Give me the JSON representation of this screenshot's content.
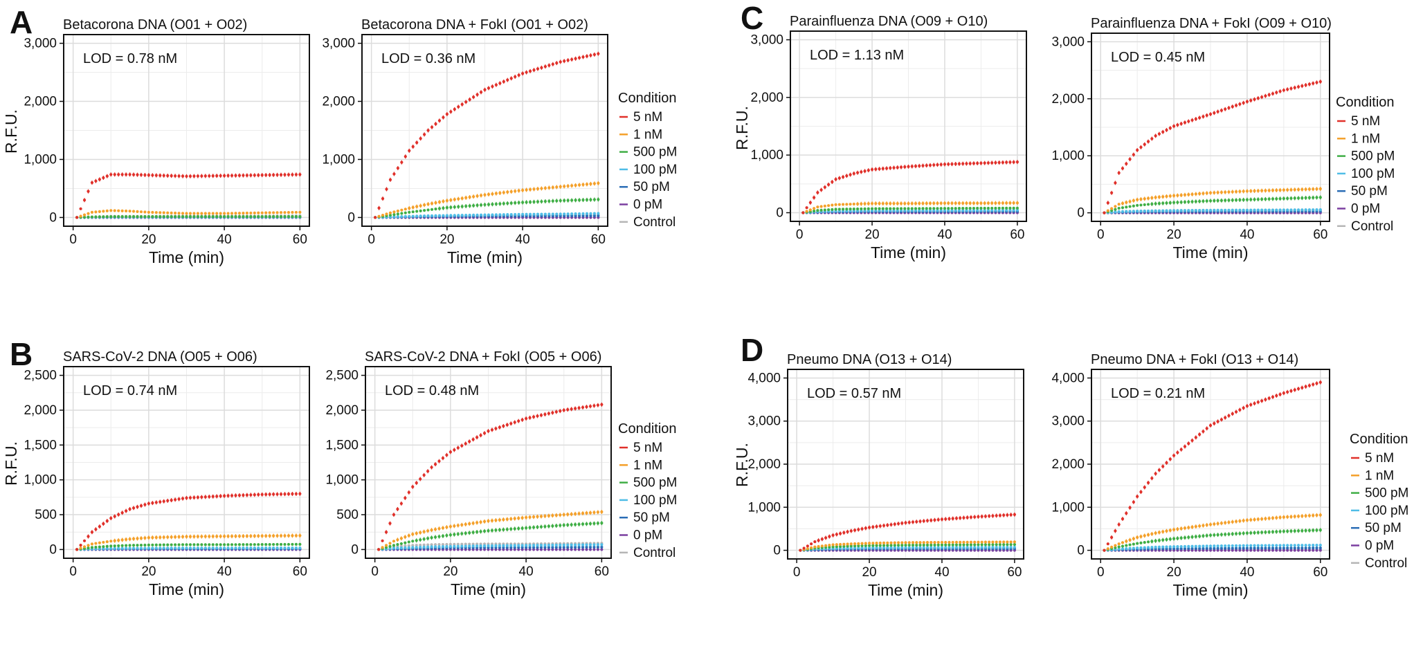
{
  "colors": {
    "5 nM": "#e0302a",
    "1 nM": "#f4a02a",
    "500 pM": "#3fae45",
    "100 pM": "#4fbde6",
    "50 pM": "#2a6db5",
    "0 pM": "#7b3fa0",
    "Control": "#b5b5b5"
  },
  "panels": [
    {
      "letter": "A"
    },
    {
      "letter": "B"
    },
    {
      "letter": "C"
    },
    {
      "letter": "D"
    }
  ],
  "chart_data": [
    {
      "type": "line",
      "title": "Betacorona DNA (O01 + O02)",
      "lod": "LOD = 0.78 nM",
      "xlabel": "Time (min)",
      "ylabel": "R.F.U.",
      "xlim": [
        0,
        60
      ],
      "ylim": [
        0,
        3000
      ],
      "xticks": [
        "0",
        "20",
        "40",
        "60"
      ],
      "yticks": [
        "0",
        "1,000",
        "2,000",
        "3,000"
      ],
      "x": [
        1,
        5,
        10,
        15,
        20,
        30,
        40,
        50,
        60
      ],
      "series": [
        {
          "name": "5 nM",
          "values": [
            0,
            600,
            740,
            740,
            730,
            710,
            720,
            730,
            740
          ]
        },
        {
          "name": "1 nM",
          "values": [
            0,
            90,
            120,
            110,
            90,
            70,
            70,
            80,
            90
          ]
        },
        {
          "name": "500 pM",
          "values": [
            0,
            10,
            15,
            15,
            15,
            15,
            15,
            15,
            15
          ]
        },
        {
          "name": "100 pM",
          "values": [
            0,
            5,
            8,
            8,
            8,
            8,
            8,
            8,
            8
          ]
        },
        {
          "name": "50 pM",
          "values": [
            0,
            3,
            5,
            5,
            5,
            5,
            5,
            5,
            5
          ]
        },
        {
          "name": "0 pM",
          "values": [
            0,
            0,
            0,
            0,
            0,
            0,
            0,
            0,
            0
          ]
        },
        {
          "name": "Control",
          "values": [
            0,
            10,
            20,
            20,
            20,
            25,
            25,
            25,
            30
          ]
        }
      ]
    },
    {
      "type": "line",
      "title": "Betacorona DNA + FokI  (O01 + O02)",
      "lod": "LOD = 0.36 nM",
      "xlabel": "Time (min)",
      "ylabel": "",
      "xlim": [
        0,
        60
      ],
      "ylim": [
        0,
        3000
      ],
      "xticks": [
        "0",
        "20",
        "40",
        "60"
      ],
      "yticks": [
        "0",
        "1,000",
        "2,000",
        "3,000"
      ],
      "x": [
        1,
        5,
        10,
        15,
        20,
        30,
        40,
        50,
        60
      ],
      "series": [
        {
          "name": "5 nM",
          "values": [
            0,
            650,
            1150,
            1500,
            1780,
            2200,
            2480,
            2680,
            2820
          ]
        },
        {
          "name": "1 nM",
          "values": [
            0,
            80,
            160,
            230,
            290,
            390,
            470,
            530,
            590
          ]
        },
        {
          "name": "500 pM",
          "values": [
            0,
            40,
            90,
            130,
            170,
            220,
            260,
            290,
            310
          ]
        },
        {
          "name": "100 pM",
          "values": [
            0,
            10,
            20,
            30,
            35,
            45,
            55,
            60,
            70
          ]
        },
        {
          "name": "50 pM",
          "values": [
            0,
            5,
            10,
            15,
            18,
            22,
            25,
            28,
            30
          ]
        },
        {
          "name": "0 pM",
          "values": [
            0,
            0,
            0,
            0,
            0,
            0,
            0,
            0,
            0
          ]
        },
        {
          "name": "Control",
          "values": [
            0,
            10,
            15,
            20,
            25,
            30,
            35,
            40,
            45
          ]
        }
      ]
    },
    {
      "type": "line",
      "title": "SARS-CoV-2 DNA (O05 + O06)",
      "lod": "LOD = 0.74 nM",
      "xlabel": "Time (min)",
      "ylabel": "R.F.U.",
      "xlim": [
        0,
        60
      ],
      "ylim": [
        0,
        2500
      ],
      "xticks": [
        "0",
        "20",
        "40",
        "60"
      ],
      "yticks": [
        "0",
        "500",
        "1,000",
        "1,500",
        "2,000",
        "2,500"
      ],
      "x": [
        1,
        5,
        10,
        15,
        20,
        30,
        40,
        50,
        60
      ],
      "series": [
        {
          "name": "5 nM",
          "values": [
            0,
            250,
            450,
            580,
            660,
            740,
            770,
            790,
            800
          ]
        },
        {
          "name": "1 nM",
          "values": [
            0,
            80,
            120,
            150,
            170,
            185,
            190,
            195,
            200
          ]
        },
        {
          "name": "500 pM",
          "values": [
            0,
            30,
            50,
            60,
            65,
            70,
            70,
            72,
            75
          ]
        },
        {
          "name": "100 pM",
          "values": [
            0,
            10,
            15,
            18,
            20,
            22,
            22,
            23,
            23
          ]
        },
        {
          "name": "50 pM",
          "values": [
            0,
            5,
            8,
            10,
            10,
            10,
            10,
            10,
            10
          ]
        },
        {
          "name": "0 pM",
          "values": [
            0,
            0,
            0,
            0,
            0,
            0,
            0,
            0,
            0
          ]
        },
        {
          "name": "Control",
          "values": [
            0,
            10,
            15,
            15,
            15,
            15,
            15,
            15,
            15
          ]
        }
      ]
    },
    {
      "type": "line",
      "title": "SARS-CoV-2 DNA + FokI  (O05 + O06)",
      "lod": "LOD = 0.48 nM",
      "xlabel": "Time (min)",
      "ylabel": "",
      "xlim": [
        0,
        60
      ],
      "ylim": [
        0,
        2500
      ],
      "xticks": [
        "0",
        "20",
        "40",
        "60"
      ],
      "yticks": [
        "0",
        "500",
        "1,000",
        "1,500",
        "2,000",
        "2,500"
      ],
      "x": [
        1,
        5,
        10,
        15,
        20,
        30,
        40,
        50,
        60
      ],
      "series": [
        {
          "name": "5 nM",
          "values": [
            0,
            500,
            900,
            1180,
            1400,
            1700,
            1880,
            2000,
            2080
          ]
        },
        {
          "name": "1 nM",
          "values": [
            0,
            120,
            220,
            280,
            330,
            410,
            460,
            500,
            540
          ]
        },
        {
          "name": "500 pM",
          "values": [
            0,
            60,
            120,
            170,
            210,
            270,
            310,
            350,
            380
          ]
        },
        {
          "name": "100 pM",
          "values": [
            0,
            20,
            30,
            40,
            45,
            55,
            60,
            65,
            70
          ]
        },
        {
          "name": "50 pM",
          "values": [
            0,
            10,
            15,
            20,
            25,
            28,
            30,
            32,
            35
          ]
        },
        {
          "name": "0 pM",
          "values": [
            0,
            0,
            0,
            0,
            0,
            0,
            0,
            0,
            0
          ]
        },
        {
          "name": "Control",
          "values": [
            0,
            40,
            60,
            70,
            75,
            80,
            80,
            85,
            90
          ]
        }
      ]
    },
    {
      "type": "line",
      "title": "Parainfluenza DNA (O09 + O10)",
      "lod": "LOD = 1.13 nM",
      "xlabel": "Time (min)",
      "ylabel": "R.F.U.",
      "xlim": [
        0,
        60
      ],
      "ylim": [
        0,
        3000
      ],
      "xticks": [
        "0",
        "20",
        "40",
        "60"
      ],
      "yticks": [
        "0",
        "1,000",
        "2,000",
        "3,000"
      ],
      "x": [
        1,
        5,
        10,
        15,
        20,
        30,
        40,
        50,
        60
      ],
      "series": [
        {
          "name": "5 nM",
          "values": [
            0,
            350,
            580,
            680,
            750,
            800,
            840,
            860,
            880
          ]
        },
        {
          "name": "1 nM",
          "values": [
            0,
            100,
            140,
            150,
            160,
            160,
            165,
            165,
            170
          ]
        },
        {
          "name": "500 pM",
          "values": [
            0,
            40,
            60,
            65,
            70,
            72,
            75,
            78,
            80
          ]
        },
        {
          "name": "100 pM",
          "values": [
            0,
            20,
            30,
            35,
            38,
            40,
            40,
            42,
            45
          ]
        },
        {
          "name": "50 pM",
          "values": [
            0,
            10,
            15,
            18,
            20,
            20,
            20,
            22,
            22
          ]
        },
        {
          "name": "0 pM",
          "values": [
            0,
            0,
            0,
            0,
            0,
            0,
            0,
            0,
            0
          ]
        },
        {
          "name": "Control",
          "values": [
            0,
            10,
            15,
            15,
            15,
            15,
            15,
            15,
            15
          ]
        }
      ]
    },
    {
      "type": "line",
      "title": "Parainfluenza DNA + FokI (O09 + O10)",
      "lod": "LOD = 0.45 nM",
      "xlabel": "Time (min)",
      "ylabel": "",
      "xlim": [
        0,
        60
      ],
      "ylim": [
        0,
        3000
      ],
      "xticks": [
        "0",
        "20",
        "40",
        "60"
      ],
      "yticks": [
        "0",
        "1,000",
        "2,000",
        "3,000"
      ],
      "x": [
        1,
        5,
        10,
        15,
        20,
        30,
        40,
        50,
        60
      ],
      "series": [
        {
          "name": "5 nM",
          "values": [
            0,
            700,
            1100,
            1350,
            1520,
            1730,
            1950,
            2150,
            2300
          ]
        },
        {
          "name": "1 nM",
          "values": [
            0,
            150,
            230,
            270,
            300,
            350,
            380,
            400,
            420
          ]
        },
        {
          "name": "500 pM",
          "values": [
            0,
            80,
            130,
            160,
            180,
            210,
            230,
            250,
            270
          ]
        },
        {
          "name": "100 pM",
          "values": [
            0,
            20,
            30,
            35,
            40,
            45,
            48,
            50,
            55
          ]
        },
        {
          "name": "50 pM",
          "values": [
            0,
            10,
            15,
            18,
            20,
            22,
            24,
            25,
            25
          ]
        },
        {
          "name": "0 pM",
          "values": [
            0,
            0,
            0,
            0,
            0,
            0,
            0,
            0,
            0
          ]
        },
        {
          "name": "Control",
          "values": [
            0,
            20,
            30,
            35,
            40,
            45,
            45,
            50,
            50
          ]
        }
      ]
    },
    {
      "type": "line",
      "title": "Pneumo DNA (O13 + O14)",
      "lod": "LOD = 0.57 nM",
      "xlabel": "Time (min)",
      "ylabel": "R.F.U.",
      "xlim": [
        0,
        60
      ],
      "ylim": [
        0,
        4000
      ],
      "xticks": [
        "0",
        "20",
        "40",
        "60"
      ],
      "yticks": [
        "0",
        "1,000",
        "2,000",
        "3,000",
        "4,000"
      ],
      "x": [
        1,
        5,
        10,
        15,
        20,
        30,
        40,
        50,
        60
      ],
      "series": [
        {
          "name": "5 nM",
          "values": [
            0,
            200,
            350,
            450,
            530,
            640,
            720,
            780,
            830
          ]
        },
        {
          "name": "1 nM",
          "values": [
            0,
            80,
            130,
            150,
            165,
            180,
            185,
            190,
            195
          ]
        },
        {
          "name": "500 pM",
          "values": [
            0,
            50,
            80,
            100,
            110,
            120,
            125,
            130,
            135
          ]
        },
        {
          "name": "100 pM",
          "values": [
            0,
            30,
            45,
            55,
            60,
            65,
            68,
            70,
            72
          ]
        },
        {
          "name": "50 pM",
          "values": [
            0,
            15,
            25,
            30,
            32,
            35,
            35,
            36,
            38
          ]
        },
        {
          "name": "0 pM",
          "values": [
            0,
            0,
            0,
            0,
            0,
            0,
            0,
            0,
            0
          ]
        },
        {
          "name": "Control",
          "values": [
            0,
            10,
            15,
            15,
            15,
            15,
            15,
            15,
            15
          ]
        }
      ]
    },
    {
      "type": "line",
      "title": "Pneumo DNA + FokI (O13 + O14)",
      "lod": "LOD = 0.21 nM",
      "xlabel": "Time (min)",
      "ylabel": "",
      "xlim": [
        0,
        60
      ],
      "ylim": [
        0,
        4000
      ],
      "xticks": [
        "0",
        "20",
        "40",
        "60"
      ],
      "yticks": [
        "0",
        "1,000",
        "2,000",
        "3,000",
        "4,000"
      ],
      "x": [
        1,
        5,
        10,
        15,
        20,
        30,
        40,
        50,
        60
      ],
      "series": [
        {
          "name": "5 nM",
          "values": [
            0,
            600,
            1250,
            1780,
            2200,
            2900,
            3350,
            3650,
            3900
          ]
        },
        {
          "name": "1 nM",
          "values": [
            0,
            150,
            300,
            400,
            480,
            600,
            700,
            770,
            820
          ]
        },
        {
          "name": "500 pM",
          "values": [
            0,
            80,
            160,
            220,
            270,
            350,
            400,
            440,
            470
          ]
        },
        {
          "name": "100 pM",
          "values": [
            0,
            30,
            55,
            75,
            85,
            100,
            110,
            115,
            120
          ]
        },
        {
          "name": "50 pM",
          "values": [
            0,
            15,
            25,
            35,
            40,
            45,
            50,
            52,
            55
          ]
        },
        {
          "name": "0 pM",
          "values": [
            0,
            0,
            0,
            0,
            0,
            0,
            0,
            0,
            0
          ]
        },
        {
          "name": "Control",
          "values": [
            0,
            10,
            15,
            15,
            15,
            15,
            15,
            15,
            15
          ]
        }
      ]
    }
  ],
  "legends": [
    {
      "title": "Condition",
      "items": [
        "5 nM",
        "1 nM",
        "500 pM",
        "100 pM",
        "50 pM",
        "0 pM",
        "Control"
      ]
    },
    {
      "title": "Condition",
      "items": [
        "5 nM",
        "1 nM",
        "500 pM",
        "100 pM",
        "50 pM",
        "0 pM",
        "Control"
      ]
    },
    {
      "title": "Condition",
      "items": [
        "5 nM",
        "1 nM",
        "500 pM",
        "100 pM",
        "50 pM",
        "0 pM",
        "Control"
      ]
    },
    {
      "title": "Condition",
      "items": [
        "5 nM",
        "1 nM",
        "500 pM",
        "100 pM",
        "50 pM",
        "0 pM",
        "Control"
      ]
    }
  ]
}
